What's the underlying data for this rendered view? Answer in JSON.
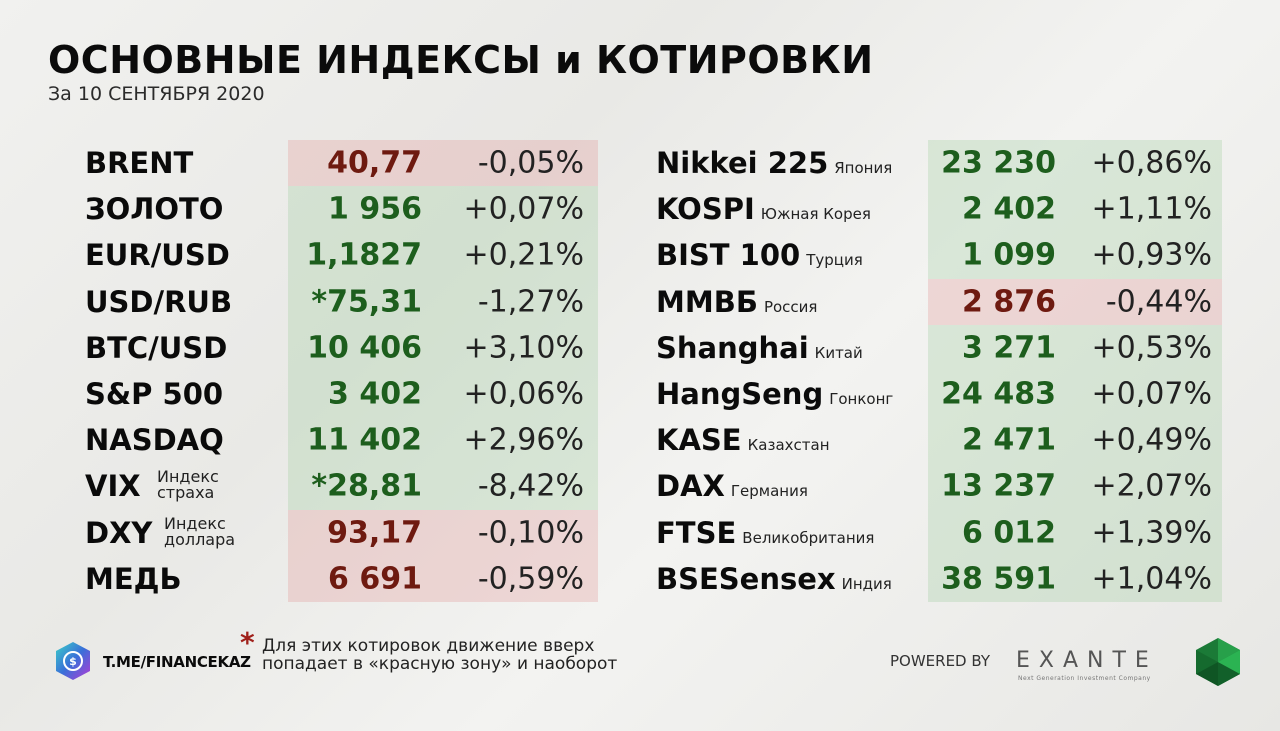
{
  "header": {
    "title": "ОСНОВНЫЕ ИНДЕКСЫ и КОТИРОВКИ",
    "subtitle": "За 10 СЕНТЯБРЯ 2020"
  },
  "left_quotes": [
    {
      "name": "BRENT",
      "value": "40,77",
      "change": "-0,05%",
      "status": "red"
    },
    {
      "name": "ЗОЛОТО",
      "value": "1 956",
      "change": "+0,07%",
      "status": "green"
    },
    {
      "name": "EUR/USD",
      "value": "1,1827",
      "change": "+0,21%",
      "status": "green"
    },
    {
      "name": "USD/RUB",
      "value": "*75,31",
      "change": "-1,27%",
      "status": "green"
    },
    {
      "name": "BTC/USD",
      "value": "10 406",
      "change": "+3,10%",
      "status": "green"
    },
    {
      "name": "S&P 500",
      "value": "3 402",
      "change": "+0,06%",
      "status": "green"
    },
    {
      "name": "NASDAQ",
      "value": "11 402",
      "change": "+2,96%",
      "status": "green"
    },
    {
      "name": "VIX",
      "sub1": "Индекс",
      "sub2": "страха",
      "value": "*28,81",
      "change": "-8,42%",
      "status": "green"
    },
    {
      "name": "DXY",
      "sub1": "Индекс",
      "sub2": "доллара",
      "value": "93,17",
      "change": "-0,10%",
      "status": "red"
    },
    {
      "name": "МЕДЬ",
      "value": "6 691",
      "change": "-0,59%",
      "status": "red"
    }
  ],
  "right_quotes": [
    {
      "name": "Nikkei 225",
      "country": "Япония",
      "value": "23 230",
      "change": "+0,86%",
      "status": "green"
    },
    {
      "name": "KOSPI",
      "country": "Южная Корея",
      "value": "2 402",
      "change": "+1,11%",
      "status": "green"
    },
    {
      "name": "BIST 100",
      "country": "Турция",
      "value": "1 099",
      "change": "+0,93%",
      "status": "green"
    },
    {
      "name": "ММВБ",
      "country": "Россия",
      "value": "2 876",
      "change": "-0,44%",
      "status": "red"
    },
    {
      "name": "Shanghai",
      "country": "Китай",
      "value": "3 271",
      "change": "+0,53%",
      "status": "green"
    },
    {
      "name": "HangSeng",
      "country": "Гонконг",
      "value": "24 483",
      "change": "+0,07%",
      "status": "green"
    },
    {
      "name": "KASE",
      "country": "Казахстан",
      "value": "2 471",
      "change": "+0,49%",
      "status": "green"
    },
    {
      "name": "DAX",
      "country": "Германия",
      "value": "13 237",
      "change": "+2,07%",
      "status": "green"
    },
    {
      "name": "FTSE",
      "country": "Великобритания",
      "value": "6 012",
      "change": "+1,39%",
      "status": "green"
    },
    {
      "name": "BSESensex",
      "country": "Индия",
      "value": "38 591",
      "change": "+1,04%",
      "status": "green"
    }
  ],
  "footer": {
    "channel": "T.ME/FINANCEKAZ",
    "asterisk": "*",
    "note": "Для этих котировок движение вверх попадает в «красную зону» и наоборот",
    "powered_by": "POWERED BY",
    "brand": "EXANTE",
    "brand_tagline": "Next Generation Investment Company"
  },
  "colors": {
    "positive_bg": "#dfe9dc",
    "negative_bg": "#ecdcd9",
    "positive_text": "#1d5e1d",
    "negative_text": "#6e1a10",
    "brand_gem": "#1d8a3e",
    "asterisk": "#a0201a"
  }
}
